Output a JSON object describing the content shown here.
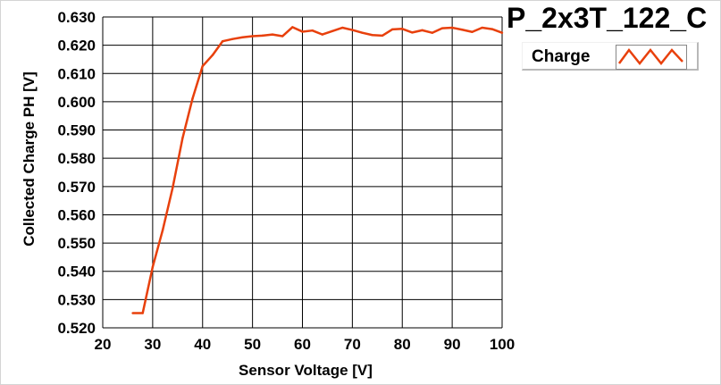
{
  "chart_data": {
    "type": "line",
    "title": "P_2x3T_122_C",
    "xlabel": "Sensor Voltage [V]",
    "ylabel": "Collected Charge PH [V]",
    "xlim": [
      20,
      100
    ],
    "ylim": [
      0.52,
      0.63
    ],
    "x_ticks": [
      "20",
      "30",
      "40",
      "50",
      "60",
      "70",
      "80",
      "90",
      "100"
    ],
    "y_ticks": [
      "0.520",
      "0.530",
      "0.540",
      "0.550",
      "0.560",
      "0.570",
      "0.580",
      "0.590",
      "0.600",
      "0.610",
      "0.620",
      "0.630"
    ],
    "grid": true,
    "legend_position": "top-right",
    "series": [
      {
        "name": "Charge",
        "color": "#e8400c",
        "x": [
          26,
          28,
          30,
          32,
          34,
          36,
          38,
          40,
          42,
          44,
          46,
          48,
          50,
          52,
          54,
          56,
          58,
          60,
          62,
          64,
          66,
          68,
          70,
          72,
          74,
          76,
          78,
          80,
          82,
          84,
          86,
          88,
          90,
          92,
          94,
          96,
          98,
          100
        ],
        "y": [
          0.5252,
          0.5252,
          0.5415,
          0.5545,
          0.5695,
          0.5872,
          0.6012,
          0.6126,
          0.6165,
          0.6214,
          0.6222,
          0.6228,
          0.6232,
          0.6234,
          0.6238,
          0.6232,
          0.6264,
          0.6248,
          0.6252,
          0.6238,
          0.625,
          0.6262,
          0.6254,
          0.6244,
          0.6236,
          0.6234,
          0.6256,
          0.6258,
          0.6245,
          0.6253,
          0.6244,
          0.626,
          0.6262,
          0.6255,
          0.6247,
          0.6262,
          0.6257,
          0.6244
        ]
      }
    ]
  }
}
